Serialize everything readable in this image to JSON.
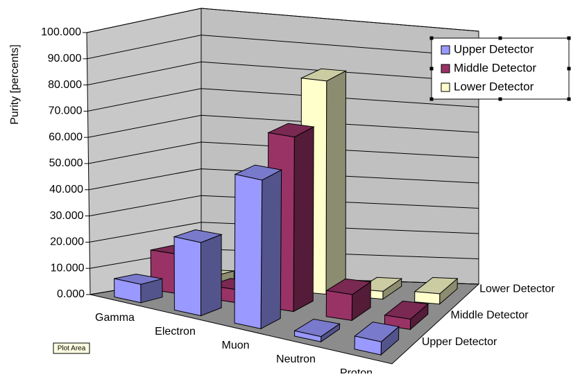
{
  "chart_data": {
    "type": "bar3d",
    "y_label": "Purity [percents]",
    "categories": [
      "Gamma",
      "Electron",
      "Muon",
      "Neutron",
      "Proton"
    ],
    "series": [
      {
        "name": "Upper Detector",
        "color": "#9999ff",
        "values": [
          7,
          28,
          57,
          2,
          5
        ]
      },
      {
        "name": "Middle Detector",
        "color": "#993366",
        "values": [
          15,
          5,
          67,
          10,
          4
        ]
      },
      {
        "name": "Lower Detector",
        "color": "#ffffcc",
        "values": [
          3,
          2,
          82,
          3,
          4
        ]
      }
    ],
    "ylim": [
      0,
      100
    ],
    "yticks": [
      {
        "value": 0,
        "label": "0.000"
      },
      {
        "value": 10,
        "label": "10.000"
      },
      {
        "value": 20,
        "label": "20.000"
      },
      {
        "value": 30,
        "label": "30.000"
      },
      {
        "value": 40,
        "label": "40.000"
      },
      {
        "value": 50,
        "label": "50.000"
      },
      {
        "value": 60,
        "label": "60.000"
      },
      {
        "value": 70,
        "label": "70.000"
      },
      {
        "value": 80,
        "label": "80.000"
      },
      {
        "value": 90,
        "label": "90.000"
      },
      {
        "value": 100,
        "label": "100.000"
      }
    ],
    "grid": true,
    "legend_position": "top-right"
  },
  "tooltip": "Plot Area"
}
